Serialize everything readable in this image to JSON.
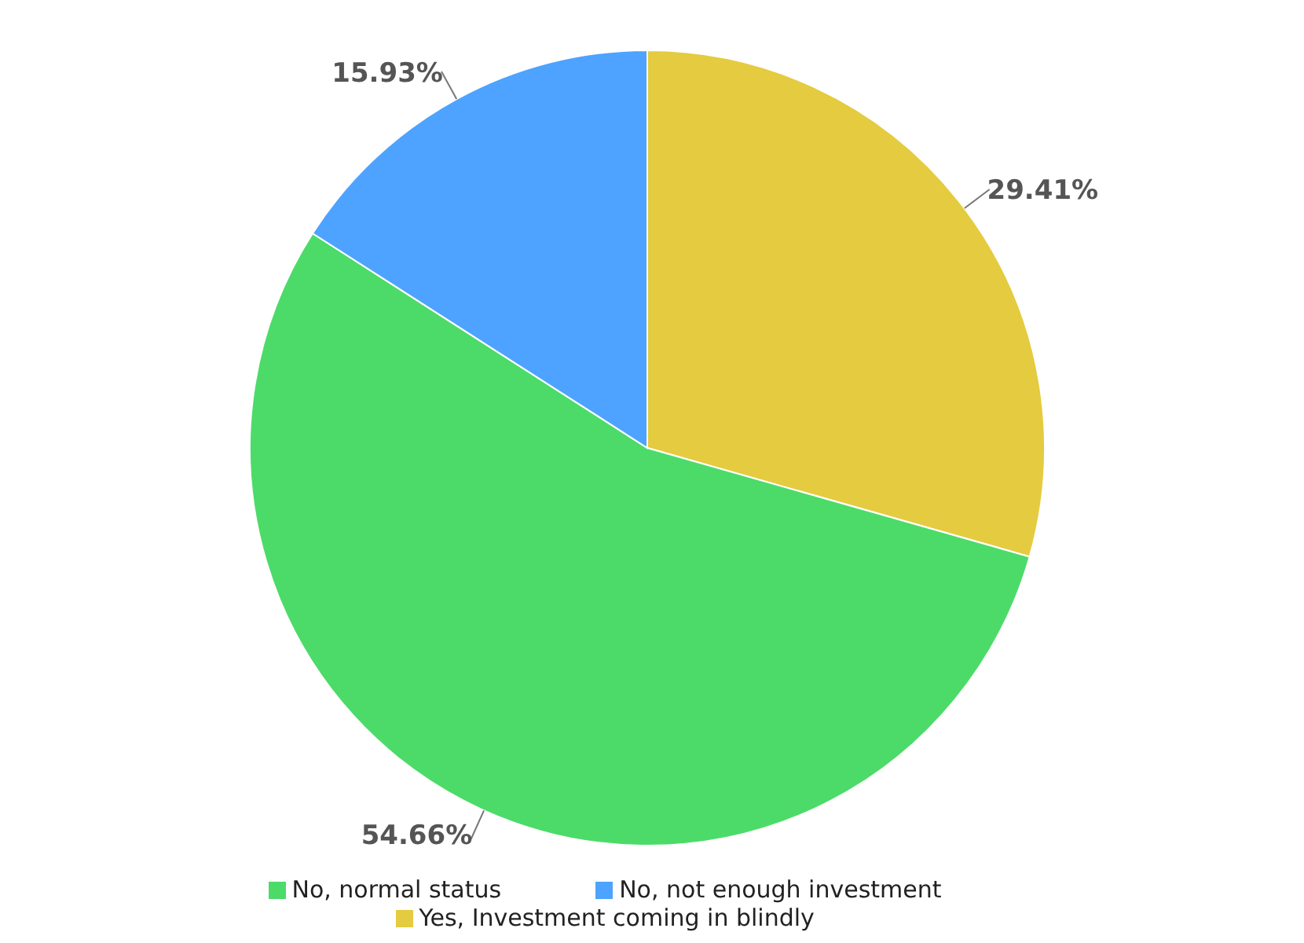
{
  "chart_data": {
    "type": "pie",
    "categories": [
      "Yes, Investment coming in blindly",
      "No, normal status",
      "No, not enough investment"
    ],
    "values": [
      29.41,
      54.66,
      15.93
    ],
    "colors": [
      "#e5cb3f",
      "#4cdb69",
      "#4da3ff"
    ],
    "value_labels": [
      "29.41%",
      "54.66%",
      "15.93%"
    ],
    "legend": "bottom"
  }
}
